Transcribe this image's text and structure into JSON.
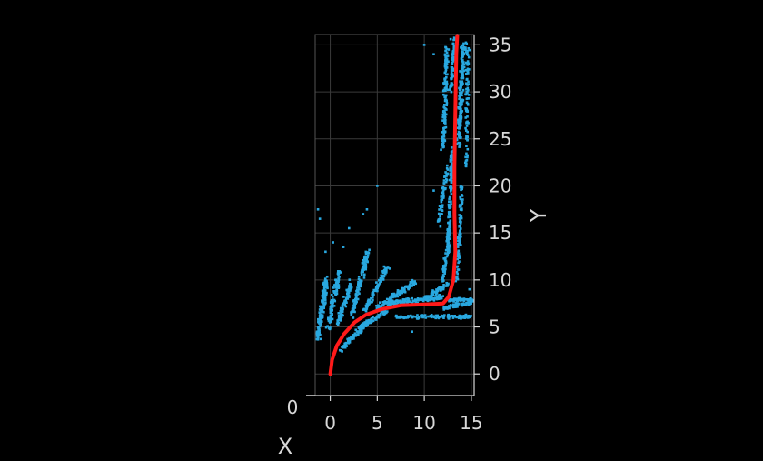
{
  "chart_data": {
    "type": "scatter",
    "xlabel": "X",
    "ylabel": "Y",
    "xlim": [
      -1.6,
      15.3
    ],
    "ylim": [
      -2.3,
      36.1
    ],
    "grid": true,
    "x_ticks": [
      0,
      5,
      10,
      15
    ],
    "y_ticks": [
      0,
      5,
      10,
      15,
      20,
      25,
      30,
      35
    ],
    "corner_label": "0",
    "colors": {
      "points": "#29a8e0",
      "path": "#ff1a1a",
      "background": "#000000",
      "grid": "#3a3a3a",
      "text": "#d8d8d8"
    },
    "series": [
      {
        "kind": "path",
        "points": [
          [
            0,
            0
          ],
          [
            0.2,
            1.5
          ],
          [
            0.7,
            3.0
          ],
          [
            1.5,
            4.3
          ],
          [
            2.6,
            5.5
          ],
          [
            3.8,
            6.3
          ],
          [
            5.5,
            6.9
          ],
          [
            7.5,
            7.3
          ],
          [
            10,
            7.4
          ],
          [
            12,
            7.5
          ],
          [
            12.6,
            8.2
          ],
          [
            13.1,
            10
          ],
          [
            13.3,
            13
          ],
          [
            13.2,
            17
          ],
          [
            13.2,
            22
          ],
          [
            13.3,
            28
          ],
          [
            13.4,
            34
          ],
          [
            13.5,
            36
          ]
        ]
      },
      {
        "kind": "cloud",
        "clusters": [
          {
            "x0": -1.3,
            "y0": 4.0,
            "x1": -0.4,
            "y1": 10.0,
            "n": 160,
            "spread": 0.35
          },
          {
            "x0": -0.2,
            "y0": 5.0,
            "x1": 1.0,
            "y1": 11.0,
            "n": 90,
            "spread": 0.35
          },
          {
            "x0": 0.8,
            "y0": 5.5,
            "x1": 2.2,
            "y1": 9.5,
            "n": 90,
            "spread": 0.3
          },
          {
            "x0": 2.2,
            "y0": 6.0,
            "x1": 4.0,
            "y1": 13.0,
            "n": 120,
            "spread": 0.35
          },
          {
            "x0": 3.5,
            "y0": 6.5,
            "x1": 6.2,
            "y1": 11.5,
            "n": 90,
            "spread": 0.3
          },
          {
            "x0": 5.0,
            "y0": 7.0,
            "x1": 9.0,
            "y1": 9.8,
            "n": 100,
            "spread": 0.25
          },
          {
            "x0": 6.0,
            "y0": 7.5,
            "x1": 12.0,
            "y1": 8.2,
            "n": 120,
            "spread": 0.2
          },
          {
            "x0": 7.0,
            "y0": 6.1,
            "x1": 15.0,
            "y1": 6.1,
            "n": 110,
            "spread": 0.15
          },
          {
            "x0": 12.5,
            "y0": 7.9,
            "x1": 15.5,
            "y1": 7.9,
            "n": 70,
            "spread": 0.12
          },
          {
            "x0": 12.0,
            "y0": 7.0,
            "x1": 15.0,
            "y1": 7.6,
            "n": 60,
            "spread": 0.15
          },
          {
            "x0": 1.0,
            "y0": 2.5,
            "x1": 4.0,
            "y1": 5.5,
            "n": 70,
            "spread": 0.25
          },
          {
            "x0": 3.0,
            "y0": 5.0,
            "x1": 6.0,
            "y1": 6.6,
            "n": 60,
            "spread": 0.2
          },
          {
            "x0": 10.0,
            "y0": 8.0,
            "x1": 12.5,
            "y1": 9.5,
            "n": 50,
            "spread": 0.2
          },
          {
            "x0": 12.0,
            "y0": 10.0,
            "x1": 12.6,
            "y1": 15.0,
            "n": 50,
            "spread": 0.25
          },
          {
            "x0": 12.5,
            "y0": 13.0,
            "x1": 13.0,
            "y1": 24.0,
            "n": 140,
            "spread": 0.25
          },
          {
            "x0": 13.5,
            "y0": 10.0,
            "x1": 14.0,
            "y1": 20.0,
            "n": 90,
            "spread": 0.25
          },
          {
            "x0": 11.5,
            "y0": 16.0,
            "x1": 12.5,
            "y1": 22.0,
            "n": 60,
            "spread": 0.3
          },
          {
            "x0": 12.0,
            "y0": 24.0,
            "x1": 12.4,
            "y1": 35.0,
            "n": 140,
            "spread": 0.3
          },
          {
            "x0": 13.6,
            "y0": 24.0,
            "x1": 14.2,
            "y1": 35.0,
            "n": 160,
            "spread": 0.35
          },
          {
            "x0": 14.5,
            "y0": 22.0,
            "x1": 14.6,
            "y1": 35.0,
            "n": 90,
            "spread": 0.25
          },
          {
            "x0": 12.8,
            "y0": 30.0,
            "x1": 13.2,
            "y1": 36.0,
            "n": 60,
            "spread": 0.2
          }
        ],
        "scattered": [
          [
            -1.3,
            17.5
          ],
          [
            -1.1,
            16.5
          ],
          [
            0.3,
            14.0
          ],
          [
            2.0,
            15.5
          ],
          [
            3.5,
            17.0
          ],
          [
            3.9,
            17.5
          ],
          [
            5.0,
            20.0
          ],
          [
            1.4,
            13.5
          ],
          [
            -0.5,
            13.0
          ],
          [
            10.0,
            35.0
          ],
          [
            11.0,
            34.0
          ],
          [
            12.8,
            35.6
          ],
          [
            11.0,
            19.5
          ],
          [
            11.8,
            18.5
          ],
          [
            8.7,
            4.5
          ],
          [
            14.8,
            9.0
          ]
        ]
      }
    ]
  }
}
